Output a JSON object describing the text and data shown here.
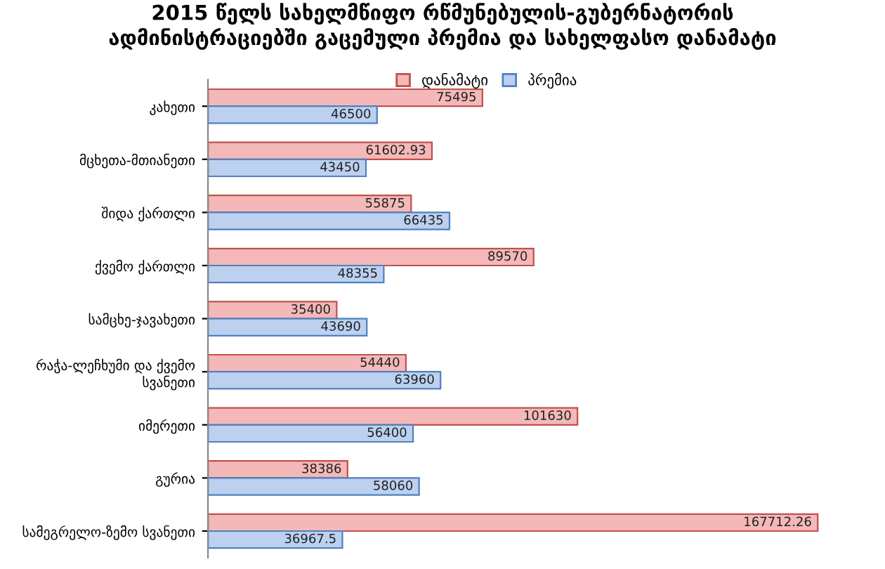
{
  "chart_data": {
    "type": "bar",
    "orientation": "horizontal",
    "title": "2015 წელს სახელმწიფო რწმუნებულის-გუბერნატორის\nადმინისტრაციებში გაცემული პრემია და სახელფასო დანამატი",
    "categories": [
      "კახეთი",
      "მცხეთა-მთიანეთი",
      "შიდა ქართლი",
      "ქვემო ქართლი",
      "სამცხე-ჯავახეთი",
      "რაჭა-ლეჩხუმი და ქვემო\nსვანეთი",
      "იმერეთი",
      "გურია",
      "სამეგრელო-ზემო სვანეთი"
    ],
    "series": [
      {
        "name": "დანამატი",
        "color": "#f4b8b8",
        "values": [
          75495,
          61602.93,
          55875,
          89570,
          35400,
          54440,
          101630,
          38386,
          167712.26
        ]
      },
      {
        "name": "პრემია",
        "color": "#bcd0f0",
        "values": [
          46500,
          43450,
          66435,
          48355,
          43690,
          63960,
          56400,
          58060,
          36967.5
        ]
      }
    ],
    "data_labels": true,
    "legend": "top",
    "grid": false,
    "tick_labels": "y"
  }
}
